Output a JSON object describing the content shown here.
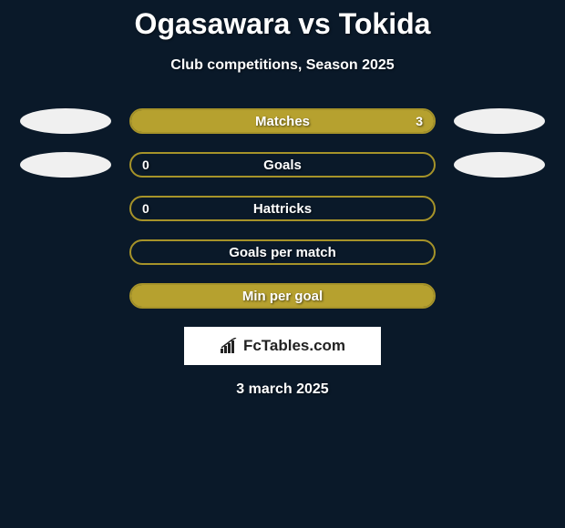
{
  "title": "Ogasawara vs Tokida",
  "subtitle": "Club competitions, Season 2025",
  "date": "3 march 2025",
  "colors": {
    "background": "#0a1929",
    "pill_border": "#a69329",
    "pill_fill": "#b6a12f",
    "ellipse": "#f0f0f0",
    "text": "#ffffff",
    "logo_bg": "#ffffff",
    "logo_text": "#222222"
  },
  "logo": {
    "text": "FcTables.com"
  },
  "rows": [
    {
      "label": "Matches",
      "left_value": "",
      "right_value": "3",
      "fill_pct": 100,
      "show_left_ellipse": true,
      "show_right_ellipse": true
    },
    {
      "label": "Goals",
      "left_value": "0",
      "right_value": "",
      "fill_pct": 0,
      "show_left_ellipse": true,
      "show_right_ellipse": true
    },
    {
      "label": "Hattricks",
      "left_value": "0",
      "right_value": "",
      "fill_pct": 0,
      "show_left_ellipse": false,
      "show_right_ellipse": false
    },
    {
      "label": "Goals per match",
      "left_value": "",
      "right_value": "",
      "fill_pct": 0,
      "show_left_ellipse": false,
      "show_right_ellipse": false
    },
    {
      "label": "Min per goal",
      "left_value": "",
      "right_value": "",
      "fill_pct": 100,
      "show_left_ellipse": false,
      "show_right_ellipse": false
    }
  ]
}
